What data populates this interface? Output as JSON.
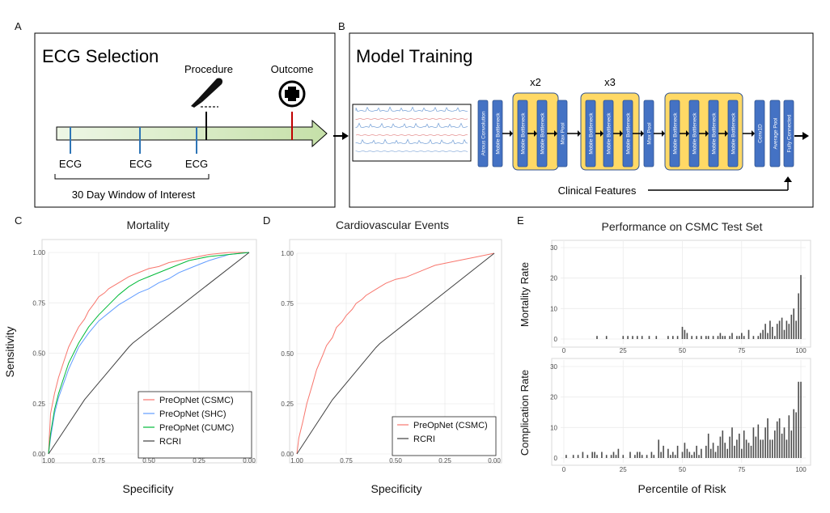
{
  "panels": {
    "a": {
      "letter": "A",
      "title": "ECG Selection",
      "procedure_label": "Procedure",
      "outcome_label": "Outcome",
      "ecg_labels": [
        "ECG",
        "ECG",
        "ECG"
      ],
      "window_label": "30 Day Window of Interest",
      "icons": [
        "scalpel-icon",
        "medical-cross-icon"
      ]
    },
    "b": {
      "letter": "B",
      "title": "Model Training",
      "blocks": {
        "atrous": "Atrous Convolution",
        "mobile": "Mobile Bottleneck",
        "maxpool": "Max Pool",
        "conv1d": "Conv1D",
        "avgpool": "Average Pool",
        "fc": "Fully Connected"
      },
      "repeat_1": "x2",
      "repeat_2": "x3",
      "clinical_label": "Clinical Features"
    },
    "c": {
      "letter": "C"
    },
    "d": {
      "letter": "D"
    },
    "e": {
      "letter": "E",
      "title": "Performance on CSMC Test Set"
    }
  },
  "chart_data": [
    {
      "id": "mortality-roc",
      "type": "line",
      "title": "Mortality",
      "xlabel": "Specificity",
      "ylabel": "Sensitivity",
      "x_reversed": true,
      "xlim": [
        1.0,
        0.0
      ],
      "ylim": [
        0.0,
        1.0
      ],
      "xticks": [
        "1.00",
        "0.75",
        "0.50",
        "0.25",
        "0.00"
      ],
      "yticks": [
        "0.00",
        "0.25",
        "0.50",
        "0.75",
        "1.00"
      ],
      "grid": true,
      "legend_position": "bottom-right",
      "series": [
        {
          "name": "PreOpNet (CSMC)",
          "color": "#f8766d",
          "x": [
            1.0,
            0.99,
            0.97,
            0.95,
            0.92,
            0.9,
            0.87,
            0.85,
            0.82,
            0.8,
            0.77,
            0.75,
            0.72,
            0.7,
            0.65,
            0.6,
            0.55,
            0.5,
            0.45,
            0.4,
            0.35,
            0.3,
            0.25,
            0.2,
            0.1,
            0.0
          ],
          "y": [
            0.0,
            0.2,
            0.3,
            0.38,
            0.47,
            0.53,
            0.59,
            0.63,
            0.67,
            0.71,
            0.75,
            0.78,
            0.8,
            0.82,
            0.85,
            0.88,
            0.9,
            0.92,
            0.93,
            0.95,
            0.96,
            0.97,
            0.98,
            0.99,
            1.0,
            1.0
          ]
        },
        {
          "name": "PreOpNet (SHC)",
          "color": "#619cff",
          "x": [
            1.0,
            0.99,
            0.97,
            0.95,
            0.9,
            0.85,
            0.8,
            0.75,
            0.7,
            0.65,
            0.6,
            0.55,
            0.5,
            0.45,
            0.4,
            0.35,
            0.3,
            0.25,
            0.2,
            0.1,
            0.0
          ],
          "y": [
            0.0,
            0.08,
            0.2,
            0.28,
            0.42,
            0.53,
            0.6,
            0.66,
            0.7,
            0.74,
            0.77,
            0.8,
            0.82,
            0.85,
            0.87,
            0.9,
            0.92,
            0.94,
            0.96,
            0.99,
            1.0
          ]
        },
        {
          "name": "PreOpNet (CUMC)",
          "color": "#00ba38",
          "x": [
            1.0,
            0.99,
            0.97,
            0.95,
            0.9,
            0.85,
            0.8,
            0.75,
            0.7,
            0.65,
            0.6,
            0.55,
            0.5,
            0.45,
            0.4,
            0.35,
            0.3,
            0.25,
            0.2,
            0.1,
            0.0
          ],
          "y": [
            0.0,
            0.1,
            0.22,
            0.3,
            0.45,
            0.55,
            0.63,
            0.69,
            0.74,
            0.79,
            0.83,
            0.86,
            0.88,
            0.9,
            0.92,
            0.94,
            0.96,
            0.97,
            0.98,
            0.99,
            1.0
          ]
        },
        {
          "name": "RCRI",
          "color": "#404040",
          "x": [
            1.0,
            0.82,
            0.6,
            0.58,
            0.0
          ],
          "y": [
            0.0,
            0.27,
            0.53,
            0.55,
            1.0
          ]
        }
      ]
    },
    {
      "id": "cardiovascular-roc",
      "type": "line",
      "title": "Cardiovascular Events",
      "xlabel": "Specificity",
      "ylabel": "",
      "x_reversed": true,
      "xlim": [
        1.0,
        0.0
      ],
      "ylim": [
        0.0,
        1.0
      ],
      "xticks": [
        "1.00",
        "0.75",
        "0.50",
        "0.25",
        "0.00"
      ],
      "yticks": [
        "0.00",
        "0.25",
        "0.50",
        "0.75",
        "1.00"
      ],
      "grid": true,
      "legend_position": "bottom-right",
      "series": [
        {
          "name": "PreOpNet (CSMC)",
          "color": "#f8766d",
          "x": [
            1.0,
            0.99,
            0.97,
            0.95,
            0.92,
            0.9,
            0.87,
            0.85,
            0.82,
            0.8,
            0.77,
            0.75,
            0.72,
            0.7,
            0.67,
            0.65,
            0.6,
            0.55,
            0.5,
            0.45,
            0.4,
            0.35,
            0.3,
            0.25,
            0.2,
            0.1,
            0.05,
            0.0
          ],
          "y": [
            0.0,
            0.08,
            0.16,
            0.25,
            0.35,
            0.42,
            0.49,
            0.54,
            0.58,
            0.63,
            0.66,
            0.69,
            0.72,
            0.75,
            0.77,
            0.79,
            0.82,
            0.85,
            0.87,
            0.88,
            0.9,
            0.92,
            0.94,
            0.95,
            0.96,
            0.98,
            0.99,
            1.0
          ]
        },
        {
          "name": "RCRI",
          "color": "#404040",
          "x": [
            1.0,
            0.82,
            0.6,
            0.58,
            0.0
          ],
          "y": [
            0.0,
            0.27,
            0.53,
            0.55,
            1.0
          ]
        }
      ]
    },
    {
      "id": "mortality-rate-bars",
      "type": "bar",
      "title": "",
      "xlabel": "",
      "ylabel": "Mortality Rate",
      "xlim": [
        0,
        100
      ],
      "ylim": [
        0,
        30
      ],
      "xticks": [
        "0",
        "25",
        "50",
        "75",
        "100"
      ],
      "yticks": [
        "0",
        "10",
        "20",
        "30"
      ],
      "grid": true,
      "x": [
        14,
        18,
        25,
        27,
        29,
        31,
        33,
        36,
        39,
        44,
        46,
        48,
        50,
        51,
        52,
        54,
        56,
        58,
        60,
        61,
        63,
        65,
        66,
        67,
        68,
        70,
        71,
        73,
        74,
        75,
        76,
        78,
        80,
        82,
        83,
        84,
        85,
        86,
        87,
        88,
        89,
        90,
        91,
        92,
        93,
        94,
        95,
        96,
        97,
        98,
        99,
        100
      ],
      "values": [
        1,
        1,
        1,
        1,
        1,
        1,
        1,
        1,
        1,
        1,
        1,
        1,
        4,
        3,
        2,
        1,
        1,
        1,
        1,
        1,
        1,
        1,
        2,
        1,
        1,
        1,
        2,
        1,
        1,
        2,
        1,
        3,
        1,
        1,
        2,
        3,
        5,
        2,
        6,
        4,
        1,
        5,
        6,
        7,
        3,
        6,
        5,
        8,
        10,
        6,
        15,
        21
      ]
    },
    {
      "id": "complication-rate-bars",
      "type": "bar",
      "title": "",
      "xlabel": "Percentile of Risk",
      "ylabel": "Complication Rate",
      "xlim": [
        0,
        100
      ],
      "ylim": [
        0,
        30
      ],
      "xticks": [
        "0",
        "25",
        "50",
        "75",
        "100"
      ],
      "yticks": [
        "0",
        "10",
        "20",
        "30"
      ],
      "grid": true,
      "x": [
        1,
        4,
        6,
        8,
        10,
        12,
        13,
        14,
        16,
        18,
        20,
        21,
        22,
        23,
        25,
        28,
        30,
        31,
        32,
        33,
        35,
        37,
        38,
        40,
        41,
        42,
        44,
        45,
        46,
        47,
        48,
        50,
        51,
        52,
        53,
        54,
        55,
        56,
        57,
        58,
        60,
        61,
        62,
        63,
        64,
        65,
        66,
        67,
        68,
        69,
        70,
        71,
        72,
        73,
        74,
        75,
        76,
        77,
        78,
        79,
        80,
        81,
        82,
        83,
        84,
        85,
        86,
        87,
        88,
        89,
        90,
        91,
        92,
        93,
        94,
        95,
        96,
        97,
        98,
        99,
        100
      ],
      "values": [
        1,
        1,
        1,
        2,
        1,
        2,
        2,
        1,
        2,
        1,
        1,
        2,
        1,
        3,
        1,
        2,
        1,
        2,
        2,
        1,
        1,
        2,
        1,
        6,
        2,
        4,
        3,
        1,
        2,
        1,
        4,
        2,
        5,
        3,
        2,
        1,
        2,
        4,
        1,
        3,
        4,
        8,
        3,
        5,
        2,
        4,
        7,
        9,
        5,
        3,
        7,
        10,
        4,
        6,
        8,
        3,
        9,
        6,
        5,
        4,
        10,
        7,
        11,
        6,
        6,
        10,
        13,
        6,
        6,
        9,
        12,
        13,
        8,
        10,
        6,
        14,
        9,
        16,
        15,
        25,
        25
      ]
    }
  ]
}
